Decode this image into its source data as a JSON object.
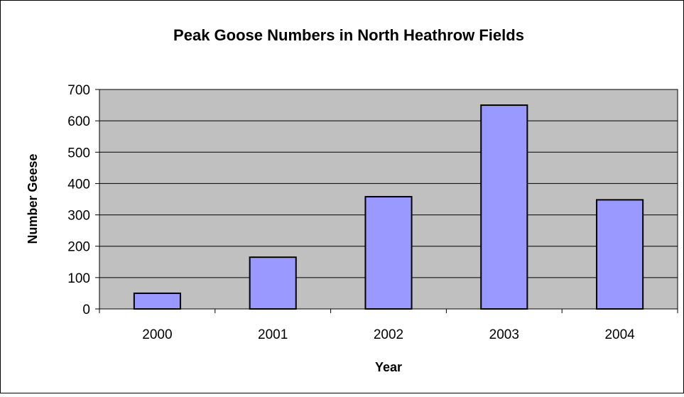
{
  "chart_data": {
    "type": "bar",
    "title": "Peak Goose Numbers in North Heathrow Fields",
    "xlabel": "Year",
    "ylabel": "Number Geese",
    "categories": [
      "2000",
      "2001",
      "2002",
      "2003",
      "2004"
    ],
    "values": [
      50,
      165,
      358,
      650,
      348
    ],
    "ylim": [
      0,
      700
    ],
    "yticks": [
      "0",
      "100",
      "200",
      "300",
      "400",
      "500",
      "600",
      "700"
    ],
    "grid": true,
    "legend": "none",
    "colors": {
      "bar_fill": "#9999ff",
      "bar_stroke": "#000000",
      "plot_background": "#c0c0c0",
      "gridline": "#000000",
      "frame": "#000000"
    }
  }
}
